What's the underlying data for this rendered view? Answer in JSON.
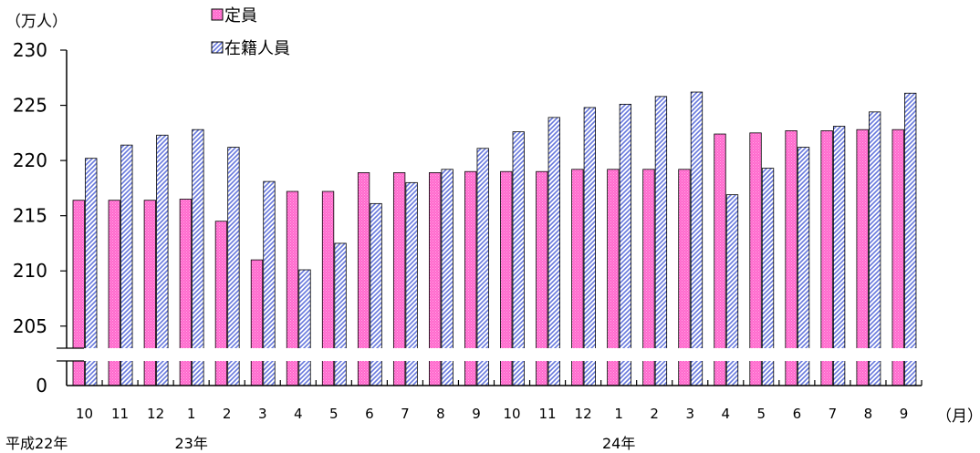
{
  "chart_data": {
    "type": "bar",
    "y_unit": "（万人）",
    "x_unit": "（月）",
    "categories": [
      "10",
      "11",
      "12",
      "1",
      "2",
      "3",
      "4",
      "5",
      "6",
      "7",
      "8",
      "9",
      "10",
      "11",
      "12",
      "1",
      "2",
      "3",
      "4",
      "5",
      "6",
      "7",
      "8",
      "9"
    ],
    "year_labels": [
      {
        "index": 0,
        "text": "平成22年"
      },
      {
        "index": 3,
        "text": "23年"
      },
      {
        "index": 15,
        "text": "24年"
      }
    ],
    "series": [
      {
        "name": "定員",
        "color": "#ff66cc",
        "values": [
          216.4,
          216.4,
          216.4,
          216.5,
          214.5,
          211.0,
          217.2,
          217.2,
          218.9,
          218.9,
          218.9,
          219.0,
          219.0,
          219.0,
          219.2,
          219.2,
          219.2,
          219.2,
          222.4,
          222.5,
          222.7,
          222.7,
          222.8,
          222.8
        ]
      },
      {
        "name": "在籍人員",
        "color": "#6677dd",
        "values": [
          220.2,
          221.4,
          222.3,
          222.8,
          221.2,
          218.1,
          210.1,
          212.5,
          216.1,
          218.0,
          219.2,
          221.1,
          222.6,
          223.9,
          224.8,
          225.1,
          225.8,
          226.2,
          216.9,
          219.3,
          221.2,
          223.1,
          224.4,
          226.1
        ]
      }
    ],
    "y_ticks": [
      "0",
      "205",
      "210",
      "215",
      "220",
      "225",
      "230"
    ],
    "ylim_upper": [
      203,
      230
    ],
    "axis_break": true,
    "legend_position": "top-left"
  }
}
